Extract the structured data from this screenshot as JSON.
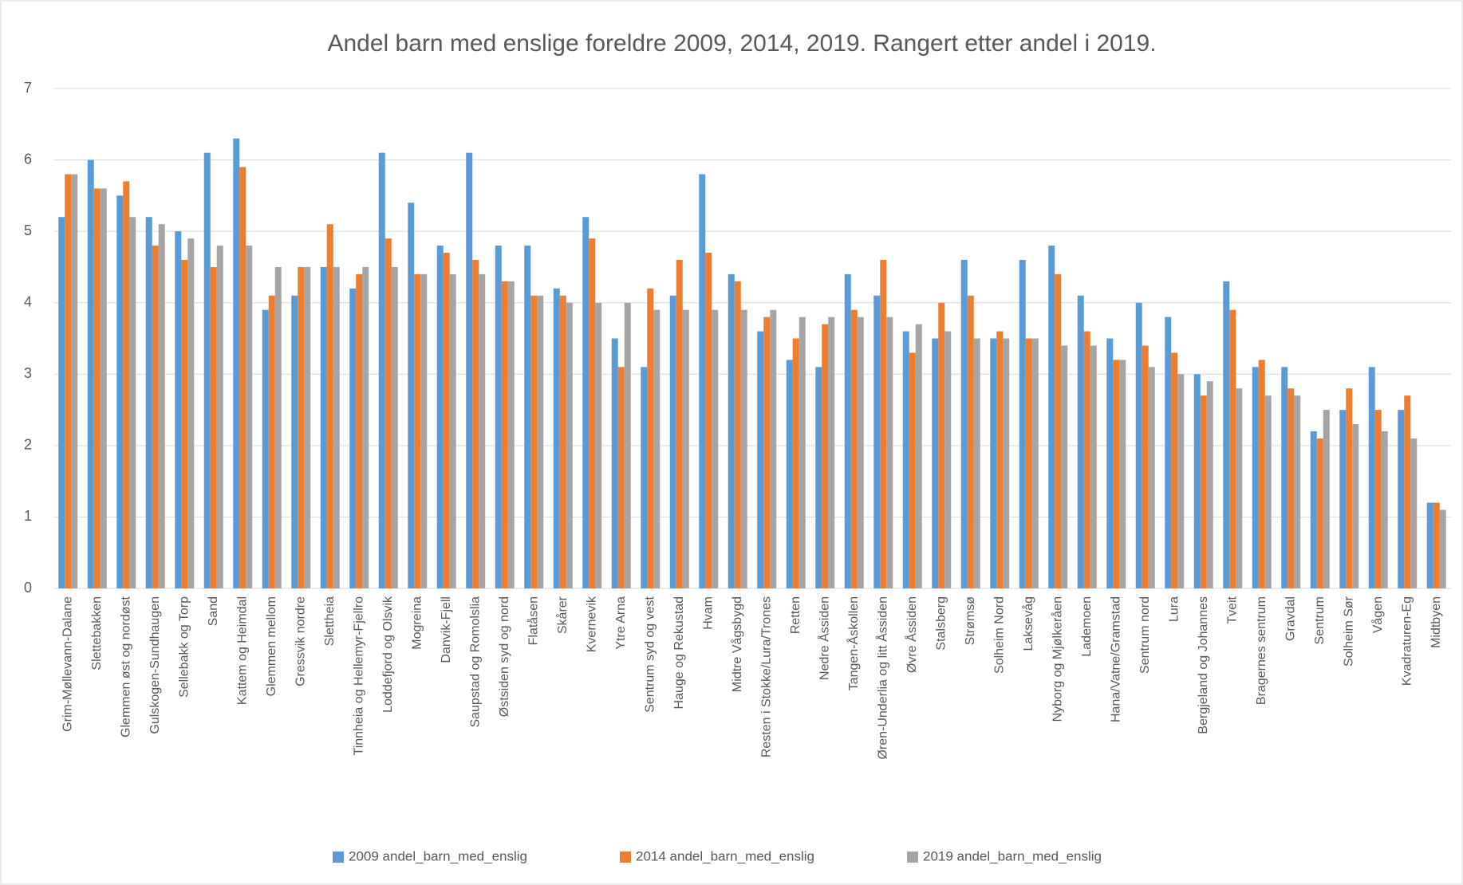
{
  "chart_data": {
    "type": "bar",
    "title": "Andel barn med enslige foreldre 2009, 2014, 2019. Rangert etter andel i 2019.",
    "categories": [
      "Grim-Møllevann-Dalane",
      "Slettebakken",
      "Glemmen øst og nordøst",
      "Gulskogen-Sundhaugen",
      "Sellebakk og Torp",
      "Sand",
      "Kattem og Heimdal",
      "Glemmen mellom",
      "Gressvik nordre",
      "Slettheia",
      "Tinnheia og Hellemyr-Fjellro",
      "Loddefjord og Olsvik",
      "Mogreina",
      "Danvik-Fjell",
      "Saupstad og Romolslia",
      "Østsiden syd og nord",
      "Flatåsen",
      "Skårer",
      "Kvernevik",
      "Ytre Arna",
      "Sentrum syd og vest",
      "Hauge og Rekustad",
      "Hvam",
      "Midtre Vågsbygd",
      "Resten i Stokke/Lura/Trones",
      "Retten",
      "Nedre Åssiden",
      "Tangen-Åskollen",
      "Øren-Underlia og litt Åssiden",
      "Øvre Åssiden",
      "Stalsberg",
      "Strømsø",
      "Solheim Nord",
      "Laksevåg",
      "Nyborg og Mjølkeråen",
      "Lademoen",
      "Hana/Vatne/Gramstad",
      "Sentrum nord",
      "Lura",
      "Bergjeland og Johannes",
      "Tveit",
      "Bragernes sentrum",
      "Gravdal",
      "Sentrum",
      "Solheim Sør",
      "Vågen",
      "Kvadraturen-Eg",
      "Midtbyen"
    ],
    "series": [
      {
        "name": "2009 andel_barn_med_enslig",
        "color": "#5b9bd5",
        "values": [
          5.2,
          6.0,
          5.5,
          5.2,
          5.0,
          6.1,
          6.3,
          3.9,
          4.1,
          4.5,
          4.2,
          6.1,
          5.4,
          4.8,
          6.1,
          4.8,
          4.8,
          4.2,
          5.2,
          3.5,
          3.1,
          4.1,
          5.8,
          4.4,
          3.6,
          3.2,
          3.1,
          4.4,
          4.1,
          3.6,
          3.5,
          4.6,
          3.5,
          4.6,
          4.8,
          4.1,
          3.5,
          4.0,
          3.8,
          3.0,
          4.3,
          3.1,
          3.1,
          2.2,
          2.5,
          3.1,
          2.5,
          1.2
        ]
      },
      {
        "name": "2014 andel_barn_med_enslig",
        "color": "#ed7d31",
        "values": [
          5.8,
          5.6,
          5.7,
          4.8,
          4.6,
          4.5,
          5.9,
          4.1,
          4.5,
          5.1,
          4.4,
          4.9,
          4.4,
          4.7,
          4.6,
          4.3,
          4.1,
          4.1,
          4.9,
          3.1,
          4.2,
          4.6,
          4.7,
          4.3,
          3.8,
          3.5,
          3.7,
          3.9,
          4.6,
          3.3,
          4.0,
          4.1,
          3.6,
          3.5,
          4.4,
          3.6,
          3.2,
          3.4,
          3.3,
          2.7,
          3.9,
          3.2,
          2.8,
          2.1,
          2.8,
          2.5,
          2.7,
          1.2
        ]
      },
      {
        "name": "2019 andel_barn_med_enslig",
        "color": "#a5a5a5",
        "values": [
          5.8,
          5.6,
          5.2,
          5.1,
          4.9,
          4.8,
          4.8,
          4.5,
          4.5,
          4.5,
          4.5,
          4.5,
          4.4,
          4.4,
          4.4,
          4.3,
          4.1,
          4.0,
          4.0,
          4.0,
          3.9,
          3.9,
          3.9,
          3.9,
          3.9,
          3.8,
          3.8,
          3.8,
          3.8,
          3.7,
          3.6,
          3.5,
          3.5,
          3.5,
          3.4,
          3.4,
          3.2,
          3.1,
          3.0,
          2.9,
          2.8,
          2.7,
          2.7,
          2.5,
          2.3,
          2.2,
          2.1,
          1.1
        ]
      }
    ],
    "ylim": [
      0,
      7
    ],
    "yticks": [
      0,
      1,
      2,
      3,
      4,
      5,
      6,
      7
    ],
    "grid": true,
    "legend": "bottom"
  }
}
